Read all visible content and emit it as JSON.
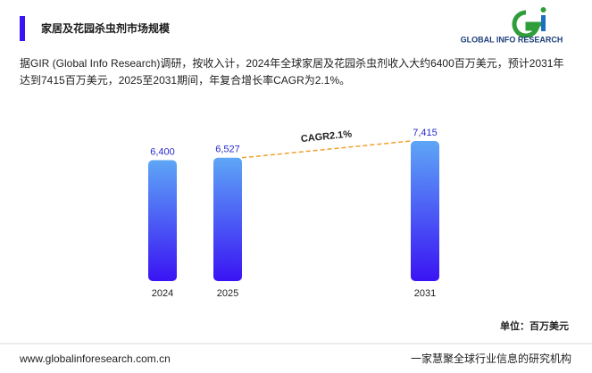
{
  "header": {
    "title": "家居及花园杀虫剂市场规模",
    "logo": "GLOBAL INFO RESEARCH"
  },
  "description": "据GIR (Global Info Research)调研，按收入计，2024年全球家居及花园杀虫剂收入大约6400百万美元，预计2031年达到7415百万美元，2025至2031期间，年复合增长率CAGR为2.1%。",
  "chart_data": {
    "type": "bar",
    "categories": [
      "2024",
      "2025",
      "2031"
    ],
    "values": [
      6400,
      6527,
      7415
    ],
    "value_labels": [
      "6,400",
      "6,527",
      "7,415"
    ],
    "colors": [
      "#5ea6f6",
      "#3a14f4"
    ],
    "ylim": [
      0,
      8000
    ],
    "annotation": "CAGR2.1%",
    "unit": "单位：百万美元"
  },
  "footer": {
    "url": "www.globalinforesearch.com.cn",
    "slogan": "一家慧聚全球行业信息的研究机构"
  }
}
